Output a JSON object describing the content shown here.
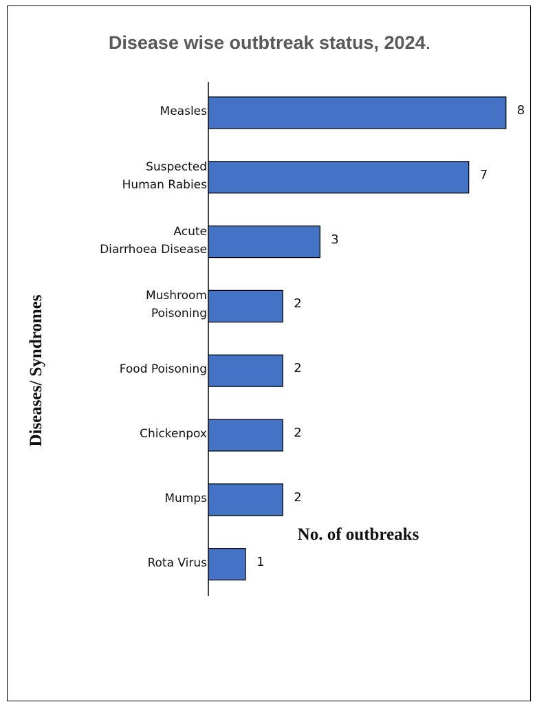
{
  "chart_data": {
    "type": "bar",
    "orientation": "horizontal",
    "title": "Disease wise outbtreak status, 2024",
    "title_suffix": ".",
    "xlabel": "No. of outbreaks",
    "ylabel": "Diseases/ Syndromes",
    "categories": [
      "Measles",
      "Suspected\nHuman Rabies",
      "Acute\nDiarrhoea Disease",
      "Mushroom\nPoisoning",
      "Food Poisoning",
      "Chickenpox",
      "Mumps",
      "Rota Virus"
    ],
    "values": [
      8,
      7,
      3,
      2,
      2,
      2,
      2,
      1
    ],
    "xlim": [
      0,
      8
    ],
    "grid": false,
    "bar_color": "#4472C4"
  }
}
